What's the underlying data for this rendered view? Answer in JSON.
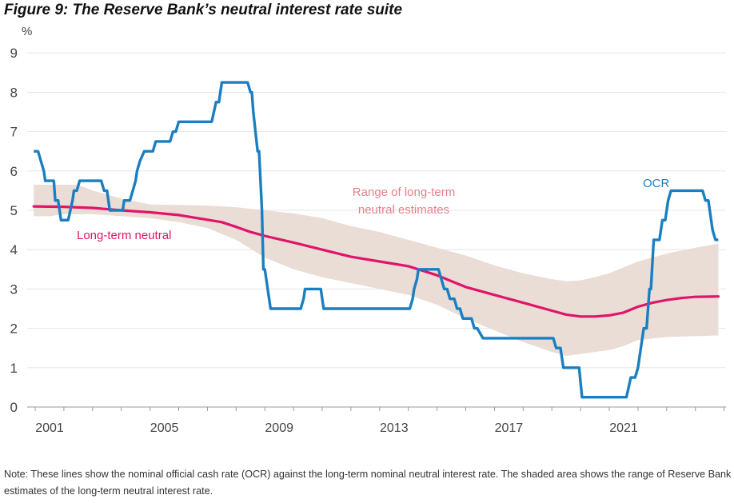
{
  "figure": {
    "title": "Figure 9: The Reserve Bank’s neutral interest rate suite",
    "note": "Note: These lines show the nominal official cash rate (OCR) against the long-term nominal neutral interest rate. The shaded area shows the range of Reserve Bank estimates of the long-term neutral interest rate."
  },
  "colors": {
    "ocr": "#1a7fc1",
    "neutral": "#e0156a",
    "range": "#e9ddd6",
    "range_label": "#e8808a",
    "grid": "#e6e6e6",
    "axis": "#999999",
    "text": "#444444"
  },
  "chart_data": {
    "type": "line",
    "title": "Figure 9: The Reserve Bank’s neutral interest rate suite",
    "ylabel": "%",
    "xlabel": "",
    "ylim": [
      0,
      9
    ],
    "yticks": [
      0,
      1,
      2,
      3,
      4,
      5,
      6,
      7,
      8,
      9
    ],
    "xlim": [
      2000.95,
      2025.0
    ],
    "xtick_labels": [
      "2001",
      "2005",
      "2009",
      "2013",
      "2017",
      "2021"
    ],
    "grid": true,
    "legend": "inline labels",
    "annotations": {
      "ocr": "OCR",
      "neutral": "Long-term neutral",
      "range_line1": "Range of long-term",
      "range_line2": "neutral estimates"
    },
    "series": [
      {
        "name": "OCR",
        "kind": "step",
        "points": [
          [
            2000.95,
            6.5
          ],
          [
            2001.1,
            6.5
          ],
          [
            2001.3,
            6.0
          ],
          [
            2001.35,
            5.75
          ],
          [
            2001.65,
            5.75
          ],
          [
            2001.7,
            5.25
          ],
          [
            2001.8,
            5.25
          ],
          [
            2001.9,
            4.75
          ],
          [
            2002.15,
            4.75
          ],
          [
            2002.3,
            5.25
          ],
          [
            2002.35,
            5.5
          ],
          [
            2002.45,
            5.5
          ],
          [
            2002.55,
            5.75
          ],
          [
            2003.3,
            5.75
          ],
          [
            2003.4,
            5.5
          ],
          [
            2003.5,
            5.5
          ],
          [
            2003.6,
            5.0
          ],
          [
            2004.05,
            5.0
          ],
          [
            2004.1,
            5.25
          ],
          [
            2004.3,
            5.25
          ],
          [
            2004.4,
            5.5
          ],
          [
            2004.5,
            5.75
          ],
          [
            2004.55,
            6.0
          ],
          [
            2004.65,
            6.25
          ],
          [
            2004.8,
            6.5
          ],
          [
            2005.1,
            6.5
          ],
          [
            2005.2,
            6.75
          ],
          [
            2005.7,
            6.75
          ],
          [
            2005.8,
            7.0
          ],
          [
            2005.9,
            7.0
          ],
          [
            2006.0,
            7.25
          ],
          [
            2007.15,
            7.25
          ],
          [
            2007.3,
            7.75
          ],
          [
            2007.4,
            7.75
          ],
          [
            2007.5,
            8.25
          ],
          [
            2008.4,
            8.25
          ],
          [
            2008.5,
            8.0
          ],
          [
            2008.55,
            8.0
          ],
          [
            2008.6,
            7.5
          ],
          [
            2008.75,
            6.5
          ],
          [
            2008.8,
            6.5
          ],
          [
            2008.9,
            5.0
          ],
          [
            2008.95,
            3.5
          ],
          [
            2009.0,
            3.5
          ],
          [
            2009.1,
            3.0
          ],
          [
            2009.2,
            2.5
          ],
          [
            2010.25,
            2.5
          ],
          [
            2010.35,
            2.75
          ],
          [
            2010.4,
            3.0
          ],
          [
            2010.95,
            3.0
          ],
          [
            2011.05,
            2.5
          ],
          [
            2014.05,
            2.5
          ],
          [
            2014.15,
            2.75
          ],
          [
            2014.2,
            3.0
          ],
          [
            2014.3,
            3.25
          ],
          [
            2014.35,
            3.5
          ],
          [
            2015.05,
            3.5
          ],
          [
            2015.15,
            3.25
          ],
          [
            2015.25,
            3.0
          ],
          [
            2015.35,
            3.0
          ],
          [
            2015.45,
            2.75
          ],
          [
            2015.6,
            2.75
          ],
          [
            2015.7,
            2.5
          ],
          [
            2015.8,
            2.5
          ],
          [
            2015.9,
            2.25
          ],
          [
            2016.2,
            2.25
          ],
          [
            2016.3,
            2.0
          ],
          [
            2016.4,
            2.0
          ],
          [
            2016.6,
            1.75
          ],
          [
            2019.05,
            1.75
          ],
          [
            2019.15,
            1.5
          ],
          [
            2019.3,
            1.5
          ],
          [
            2019.4,
            1.0
          ],
          [
            2019.95,
            1.0
          ],
          [
            2020.05,
            0.25
          ],
          [
            2021.6,
            0.25
          ],
          [
            2021.75,
            0.75
          ],
          [
            2021.9,
            0.75
          ],
          [
            2022.0,
            1.0
          ],
          [
            2022.1,
            1.5
          ],
          [
            2022.2,
            2.0
          ],
          [
            2022.3,
            2.0
          ],
          [
            2022.4,
            3.0
          ],
          [
            2022.45,
            3.0
          ],
          [
            2022.55,
            4.25
          ],
          [
            2022.75,
            4.25
          ],
          [
            2022.85,
            4.75
          ],
          [
            2022.95,
            4.75
          ],
          [
            2023.05,
            5.25
          ],
          [
            2023.15,
            5.5
          ],
          [
            2024.25,
            5.5
          ],
          [
            2024.35,
            5.25
          ],
          [
            2024.45,
            5.25
          ],
          [
            2024.6,
            4.5
          ],
          [
            2024.7,
            4.25
          ],
          [
            2024.8,
            4.25
          ]
        ]
      },
      {
        "name": "Long-term neutral",
        "kind": "line",
        "points": [
          [
            2000.95,
            5.1
          ],
          [
            2002.0,
            5.09
          ],
          [
            2003.0,
            5.06
          ],
          [
            2004.0,
            5.0
          ],
          [
            2005.0,
            4.95
          ],
          [
            2006.0,
            4.88
          ],
          [
            2007.0,
            4.76
          ],
          [
            2007.5,
            4.7
          ],
          [
            2008.0,
            4.58
          ],
          [
            2008.5,
            4.45
          ],
          [
            2009.0,
            4.35
          ],
          [
            2010.0,
            4.18
          ],
          [
            2011.0,
            4.0
          ],
          [
            2012.0,
            3.82
          ],
          [
            2013.0,
            3.7
          ],
          [
            2014.0,
            3.58
          ],
          [
            2015.0,
            3.35
          ],
          [
            2015.5,
            3.2
          ],
          [
            2016.0,
            3.05
          ],
          [
            2017.0,
            2.85
          ],
          [
            2018.0,
            2.65
          ],
          [
            2019.0,
            2.45
          ],
          [
            2019.5,
            2.35
          ],
          [
            2020.0,
            2.3
          ],
          [
            2020.5,
            2.3
          ],
          [
            2021.0,
            2.33
          ],
          [
            2021.5,
            2.4
          ],
          [
            2022.0,
            2.55
          ],
          [
            2022.5,
            2.65
          ],
          [
            2023.0,
            2.72
          ],
          [
            2023.5,
            2.77
          ],
          [
            2024.0,
            2.8
          ],
          [
            2024.8,
            2.81
          ]
        ]
      },
      {
        "name": "Range of long-term neutral estimates",
        "kind": "band",
        "upper": [
          [
            2000.95,
            5.65
          ],
          [
            2002.5,
            5.65
          ],
          [
            2003.0,
            5.5
          ],
          [
            2004.0,
            5.3
          ],
          [
            2005.0,
            5.15
          ],
          [
            2007.0,
            5.12
          ],
          [
            2008.0,
            5.08
          ],
          [
            2009.0,
            5.0
          ],
          [
            2010.0,
            4.92
          ],
          [
            2011.0,
            4.8
          ],
          [
            2012.0,
            4.6
          ],
          [
            2013.0,
            4.45
          ],
          [
            2014.0,
            4.25
          ],
          [
            2015.0,
            4.05
          ],
          [
            2016.0,
            3.85
          ],
          [
            2017.0,
            3.6
          ],
          [
            2018.0,
            3.4
          ],
          [
            2019.0,
            3.25
          ],
          [
            2019.5,
            3.2
          ],
          [
            2020.0,
            3.22
          ],
          [
            2020.5,
            3.3
          ],
          [
            2021.0,
            3.4
          ],
          [
            2022.0,
            3.7
          ],
          [
            2023.0,
            3.9
          ],
          [
            2024.0,
            4.05
          ],
          [
            2024.8,
            4.15
          ]
        ],
        "lower": [
          [
            2000.95,
            4.85
          ],
          [
            2001.5,
            4.85
          ],
          [
            2002.0,
            4.9
          ],
          [
            2003.0,
            4.9
          ],
          [
            2004.0,
            4.85
          ],
          [
            2005.0,
            4.8
          ],
          [
            2006.0,
            4.7
          ],
          [
            2007.0,
            4.55
          ],
          [
            2008.0,
            4.25
          ],
          [
            2009.0,
            3.8
          ],
          [
            2010.0,
            3.5
          ],
          [
            2011.0,
            3.3
          ],
          [
            2012.0,
            3.15
          ],
          [
            2013.0,
            3.0
          ],
          [
            2014.0,
            2.85
          ],
          [
            2015.0,
            2.6
          ],
          [
            2016.0,
            2.25
          ],
          [
            2017.0,
            1.95
          ],
          [
            2018.0,
            1.65
          ],
          [
            2019.0,
            1.4
          ],
          [
            2019.5,
            1.3
          ],
          [
            2020.0,
            1.35
          ],
          [
            2020.5,
            1.4
          ],
          [
            2021.0,
            1.45
          ],
          [
            2021.5,
            1.55
          ],
          [
            2022.0,
            1.7
          ],
          [
            2023.0,
            1.78
          ],
          [
            2024.0,
            1.8
          ],
          [
            2024.8,
            1.82
          ]
        ]
      }
    ]
  }
}
